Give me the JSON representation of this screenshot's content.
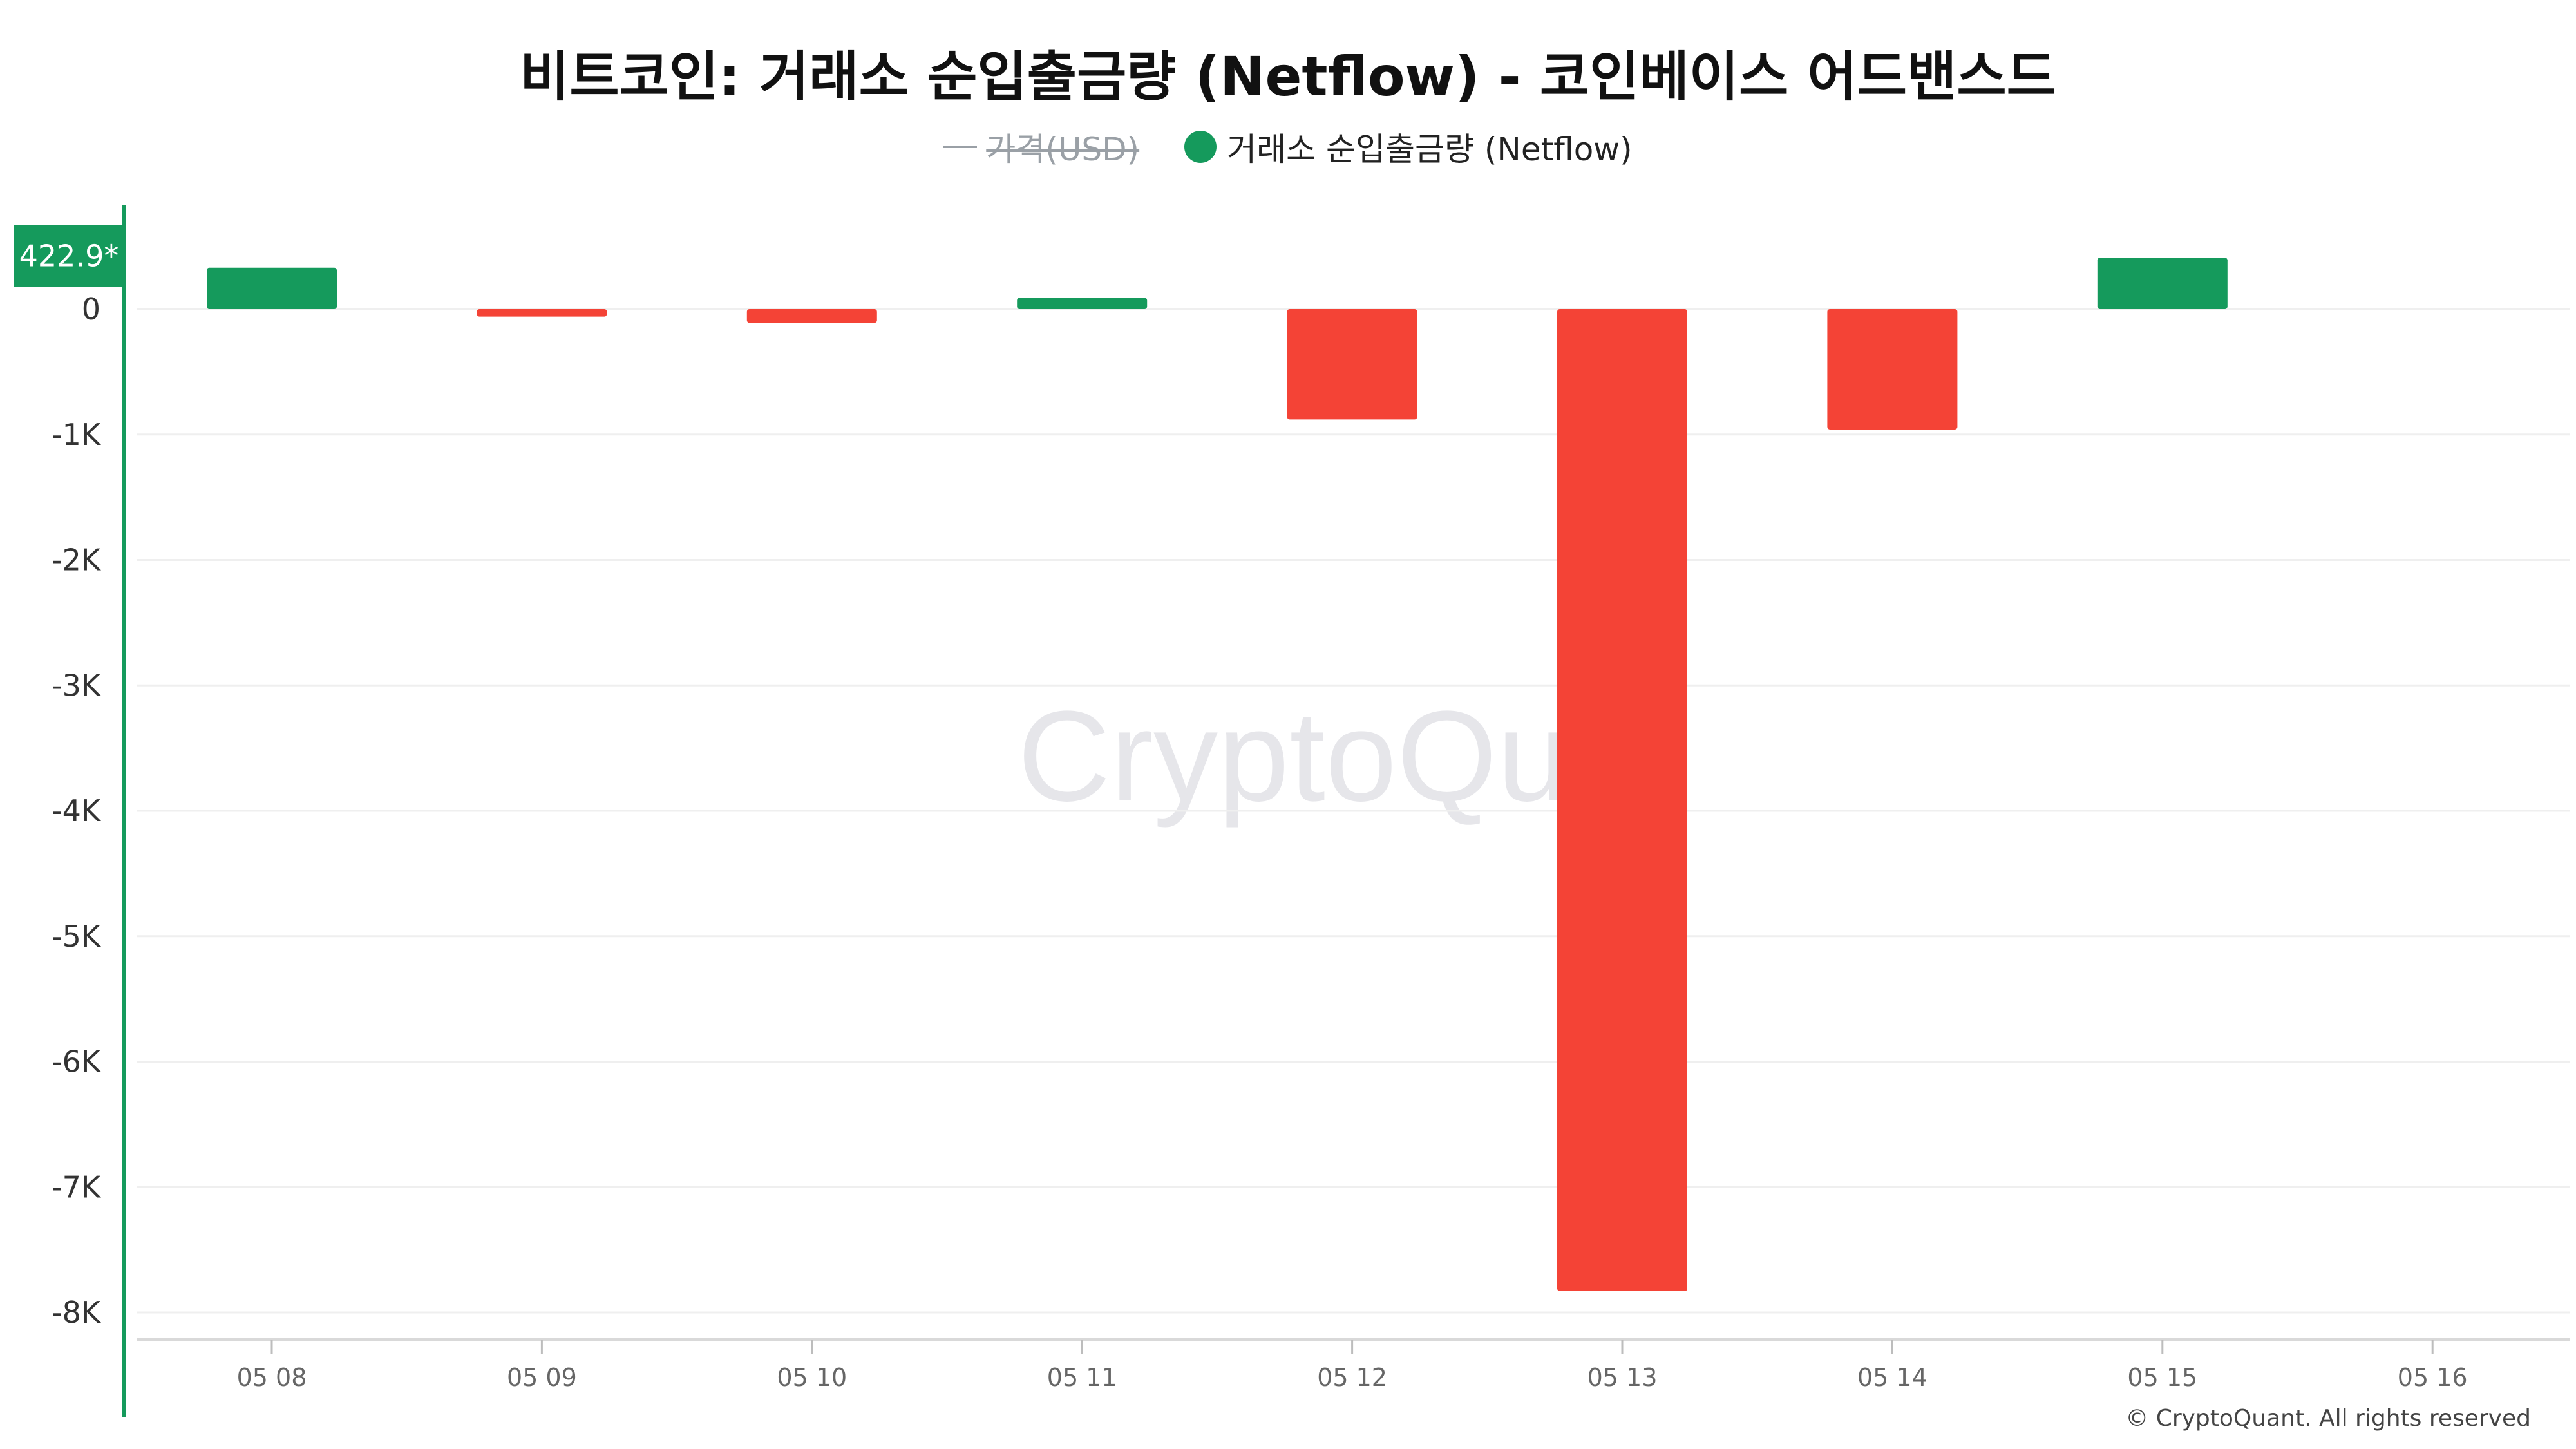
{
  "chart_data": {
    "type": "bar",
    "title": "비트코인: 거래소 순입출금량 (Netflow) - 코인베이스 어드밴스드",
    "categories": [
      "05 08",
      "05 09",
      "05 10",
      "05 11",
      "05 12",
      "05 13",
      "05 14",
      "05 15",
      "05 16"
    ],
    "series": [
      {
        "name": "거래소 순입출금량 (Netflow)",
        "values": [
          330,
          -60,
          -110,
          90,
          -880,
          -7830,
          -960,
          410,
          null
        ]
      }
    ],
    "legend": {
      "position": "top-center",
      "items": [
        {
          "label": "가격(USD)",
          "hidden": true,
          "marker": "line",
          "color": "#9aa0a6"
        },
        {
          "label": "거래소 순입출금량 (Netflow)",
          "hidden": false,
          "marker": "dot",
          "color": "#159a5c"
        }
      ]
    },
    "y_ticks": [
      {
        "value": 0,
        "label": "0"
      },
      {
        "value": -1000,
        "label": "-1K"
      },
      {
        "value": -2000,
        "label": "-2K"
      },
      {
        "value": -3000,
        "label": "-3K"
      },
      {
        "value": -4000,
        "label": "-4K"
      },
      {
        "value": -5000,
        "label": "-5K"
      },
      {
        "value": -6000,
        "label": "-6K"
      },
      {
        "value": -7000,
        "label": "-7K"
      },
      {
        "value": -8000,
        "label": "-8K"
      }
    ],
    "ylim": [
      -8000,
      422.9
    ],
    "last_value_label": "422.9*",
    "grid": true,
    "colors": {
      "positive": "#159a5c",
      "negative": "#f44336",
      "axis": "#159a5c"
    }
  },
  "watermark": "CryptoQuant",
  "copyright": "© CryptoQuant. All rights reserved"
}
